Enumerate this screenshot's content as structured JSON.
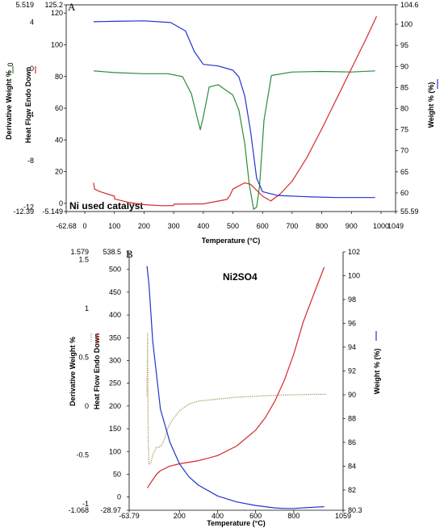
{
  "chart_data": [
    {
      "panel": "A",
      "type": "line",
      "annotation": "Ni used catalyst",
      "xlabel": "Temperature (°C)",
      "xlim": [
        -62.68,
        1049
      ],
      "x_ticks": [
        -62.68,
        0,
        100,
        200,
        300,
        400,
        500,
        600,
        700,
        800,
        900,
        1000,
        1049
      ],
      "left_axis_1": {
        "label": "Derivative Weight %",
        "ylim": [
          -12.39,
          5.519
        ],
        "ticks": [
          5.519,
          4,
          0,
          -4,
          -8,
          -12,
          -12.39
        ]
      },
      "left_axis_2": {
        "label": "Heat Flow Endo Down",
        "ylim": [
          -5.149,
          125.2
        ],
        "ticks": [
          -5.149,
          0,
          20,
          40,
          60,
          80,
          100,
          120,
          125.2
        ]
      },
      "right_axis": {
        "label": "Weight % (%)",
        "ylim": [
          55.59,
          104.6
        ],
        "ticks": [
          104.6,
          100,
          95,
          90,
          85,
          80,
          75,
          70,
          65,
          60,
          55.59
        ]
      },
      "series": [
        {
          "legend": "0",
          "color": "#2e8b3a",
          "axis": "left_axis_1",
          "x": [
            30,
            100,
            200,
            280,
            330,
            360,
            380,
            390,
            400,
            420,
            450,
            500,
            520,
            540,
            555,
            570,
            580,
            590,
            605,
            630,
            700,
            800,
            900,
            980
          ],
          "y": [
            -0.2,
            -0.35,
            -0.45,
            -0.45,
            -0.7,
            -2.2,
            -4.3,
            -5.3,
            -4.2,
            -1.6,
            -1.4,
            -2.3,
            -3.6,
            -6.5,
            -10.0,
            -12.2,
            -12.0,
            -10.2,
            -4.5,
            -0.6,
            -0.3,
            -0.25,
            -0.3,
            -0.2
          ]
        },
        {
          "color": "#d42a2a",
          "axis": "left_axis_2",
          "x": [
            30,
            33,
            50,
            100,
            101,
            150,
            200,
            260,
            300,
            301,
            400,
            480,
            490,
            500,
            540,
            560,
            600,
            628,
            660,
            700,
            750,
            800,
            850,
            900,
            950,
            985
          ],
          "y": [
            13,
            9,
            7.5,
            4.5,
            2.8,
            0.5,
            -0.8,
            -1.5,
            -1.4,
            -0.5,
            -0.3,
            2.5,
            5,
            9,
            13,
            12,
            4.5,
            1.5,
            6,
            14,
            29,
            47,
            66,
            85,
            104,
            118
          ]
        },
        {
          "color": "#2233cc",
          "axis": "right_axis",
          "x": [
            30,
            100,
            200,
            290,
            300,
            340,
            370,
            400,
            450,
            500,
            520,
            540,
            560,
            580,
            600,
            650,
            750,
            850,
            980
          ],
          "y": [
            100.6,
            100.7,
            100.8,
            100.4,
            100.0,
            98.4,
            93.5,
            90.5,
            90.1,
            89.1,
            87.5,
            83.0,
            74.5,
            63.5,
            60.3,
            59.4,
            59.1,
            58.9,
            58.9
          ]
        }
      ]
    },
    {
      "panel": "B",
      "type": "line",
      "annotation": "Ni2SO4",
      "xlabel": "Temperature (°C)",
      "xlim": [
        -63.79,
        1059
      ],
      "x_ticks": [
        -63.79,
        200,
        400,
        600,
        800,
        1059
      ],
      "left_axis_1": {
        "label": "Derivative Weight %",
        "ylim": [
          -1.068,
          1.579
        ],
        "ticks": [
          1.579,
          1.5,
          1.0,
          0.5,
          0.0,
          -0.5,
          -1.0,
          -1.068
        ]
      },
      "left_axis_2": {
        "label": "Heat Flow Endo Down",
        "ylim": [
          -28.97,
          538.5
        ],
        "ticks": [
          -28.97,
          0,
          50,
          100,
          150,
          200,
          250,
          300,
          350,
          400,
          450,
          500,
          538.5
        ]
      },
      "right_axis": {
        "label": "Weight % (%)",
        "ylim": [
          80.3,
          102
        ],
        "ticks": [
          102,
          100,
          98,
          96,
          94,
          92,
          90,
          88,
          86,
          84,
          82,
          80.3
        ]
      },
      "series": [
        {
          "color": "#a89860",
          "axis": "left_axis_1",
          "style": "dotted",
          "x": [
            30,
            33,
            36,
            40,
            50,
            60,
            80,
            100,
            120,
            140,
            160,
            180,
            200,
            250,
            300,
            400,
            500,
            700,
            900,
            970
          ],
          "y": [
            0.1,
            0.75,
            -0.35,
            -0.6,
            -0.58,
            -0.5,
            -0.42,
            -0.42,
            -0.35,
            -0.22,
            -0.15,
            -0.1,
            -0.05,
            0.02,
            0.05,
            0.07,
            0.09,
            0.11,
            0.12,
            0.12
          ]
        },
        {
          "color": "#d42a2a",
          "axis": "left_axis_2",
          "x": [
            32,
            50,
            80,
            100,
            150,
            200,
            300,
            400,
            500,
            600,
            650,
            700,
            750,
            800,
            850,
            900,
            960
          ],
          "y": [
            20,
            32,
            50,
            58,
            68,
            73,
            80,
            91,
            112,
            147,
            174,
            210,
            256,
            314,
            385,
            440,
            505
          ]
        },
        {
          "color": "#2233cc",
          "axis": "right_axis",
          "x": [
            30,
            40,
            60,
            100,
            150,
            200,
            250,
            300,
            400,
            500,
            600,
            700,
            750,
            800,
            900,
            960
          ],
          "y": [
            100.8,
            99.3,
            94.5,
            88.8,
            86.0,
            84.2,
            83.1,
            82.4,
            81.5,
            81.0,
            80.7,
            80.5,
            80.45,
            80.45,
            80.55,
            80.6
          ]
        }
      ]
    }
  ]
}
